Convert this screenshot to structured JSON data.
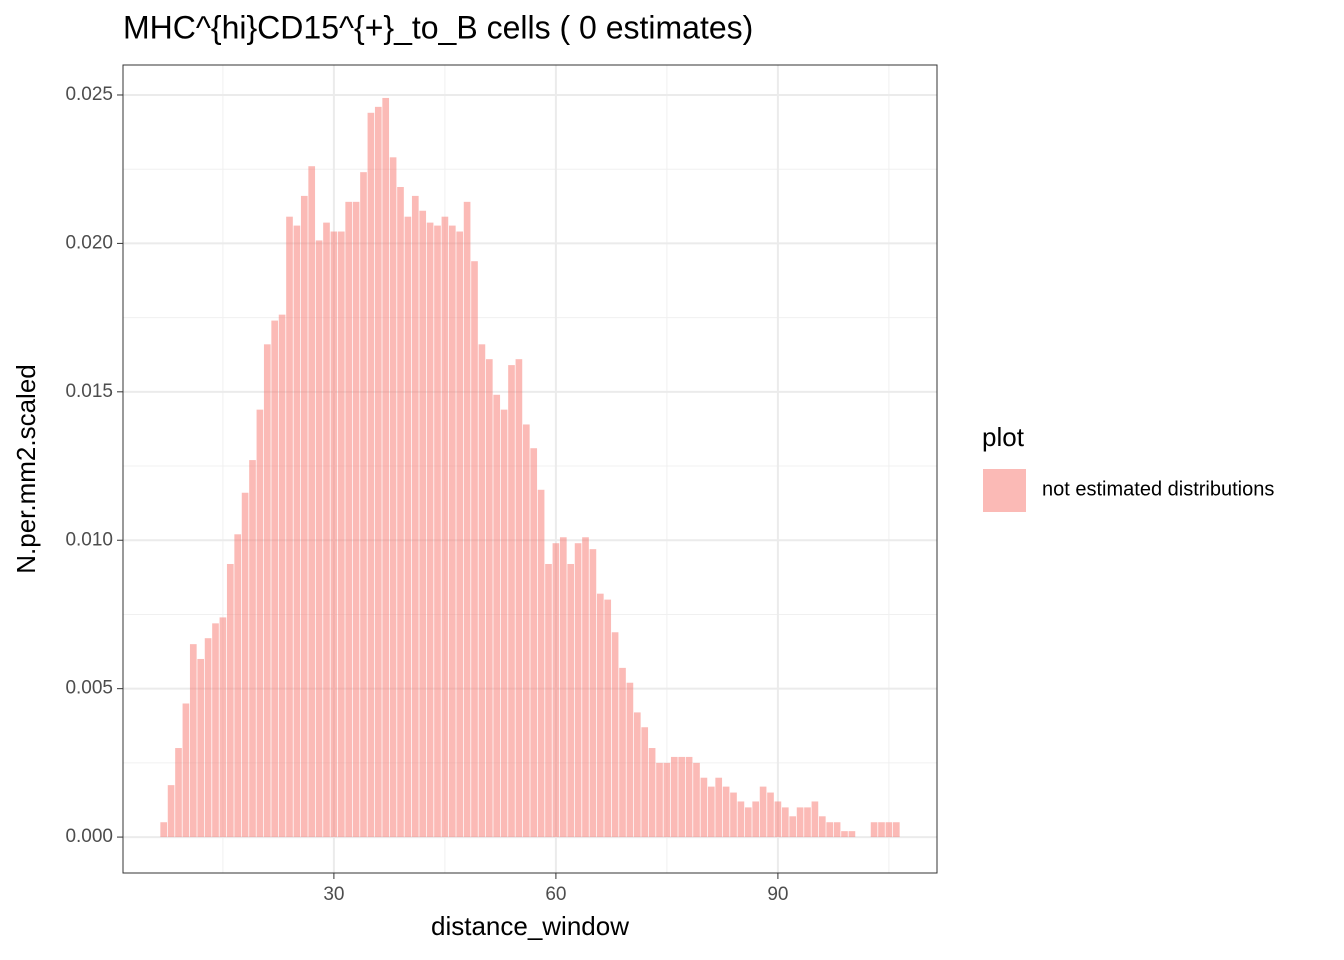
{
  "chart_data": {
    "type": "bar",
    "title": "MHC^{hi}CD15^{+}_to_B cells ( 0 estimates)",
    "x_label": "distance_window",
    "y_label": "N.per.mm2.scaled",
    "legend_title": "plot",
    "series": [
      {
        "name": "not estimated distributions",
        "color": "#F8766D",
        "x": [
          7,
          8,
          9,
          10,
          11,
          12,
          13,
          14,
          15,
          16,
          17,
          18,
          19,
          20,
          21,
          22,
          23,
          24,
          25,
          26,
          27,
          28,
          29,
          30,
          31,
          32,
          33,
          34,
          35,
          36,
          37,
          38,
          39,
          40,
          41,
          42,
          43,
          44,
          45,
          46,
          47,
          48,
          49,
          50,
          51,
          52,
          53,
          54,
          55,
          56,
          57,
          58,
          59,
          60,
          61,
          62,
          63,
          64,
          65,
          66,
          67,
          68,
          69,
          70,
          71,
          72,
          73,
          74,
          75,
          76,
          77,
          78,
          79,
          80,
          81,
          82,
          83,
          84,
          85,
          86,
          87,
          88,
          89,
          90,
          91,
          92,
          93,
          94,
          95,
          96,
          97,
          98,
          99,
          100,
          103,
          104,
          105,
          106
        ],
        "values": [
          0.0005,
          0.00175,
          0.003,
          0.0045,
          0.0065,
          0.006,
          0.0067,
          0.0072,
          0.0074,
          0.0092,
          0.0102,
          0.0116,
          0.0127,
          0.0144,
          0.0166,
          0.0174,
          0.0176,
          0.0209,
          0.0206,
          0.0216,
          0.0226,
          0.0201,
          0.0207,
          0.0204,
          0.0204,
          0.0214,
          0.0214,
          0.0224,
          0.0244,
          0.0246,
          0.0249,
          0.0229,
          0.0219,
          0.0209,
          0.0216,
          0.0211,
          0.0207,
          0.0206,
          0.0209,
          0.0206,
          0.0204,
          0.0214,
          0.0194,
          0.0166,
          0.0161,
          0.0149,
          0.0144,
          0.0159,
          0.0161,
          0.0139,
          0.0131,
          0.0117,
          0.0092,
          0.0099,
          0.0101,
          0.0092,
          0.0099,
          0.0101,
          0.0097,
          0.0082,
          0.008,
          0.0069,
          0.0057,
          0.0052,
          0.0042,
          0.0037,
          0.003,
          0.0025,
          0.0025,
          0.0027,
          0.0027,
          0.0027,
          0.0025,
          0.002,
          0.0017,
          0.002,
          0.0017,
          0.0015,
          0.0012,
          0.001,
          0.0012,
          0.0017,
          0.0015,
          0.0012,
          0.001,
          0.0007,
          0.001,
          0.001,
          0.0012,
          0.0007,
          0.0005,
          0.0005,
          0.0002,
          0.0002,
          0.0005,
          0.0005,
          0.0005,
          0.0005
        ]
      }
    ],
    "xlim": [
      1.5,
      111.5
    ],
    "xticks": [
      30,
      60,
      90
    ],
    "ylim": [
      -0.00121,
      0.02601
    ],
    "yticks": [
      {
        "value": 0,
        "label": "0.000"
      },
      {
        "value": 0.005,
        "label": "0.005"
      },
      {
        "value": 0.01,
        "label": "0.010"
      },
      {
        "value": 0.015,
        "label": "0.015"
      },
      {
        "value": 0.02,
        "label": "0.020"
      },
      {
        "value": 0.025,
        "label": "0.025"
      }
    ],
    "grid": true
  }
}
